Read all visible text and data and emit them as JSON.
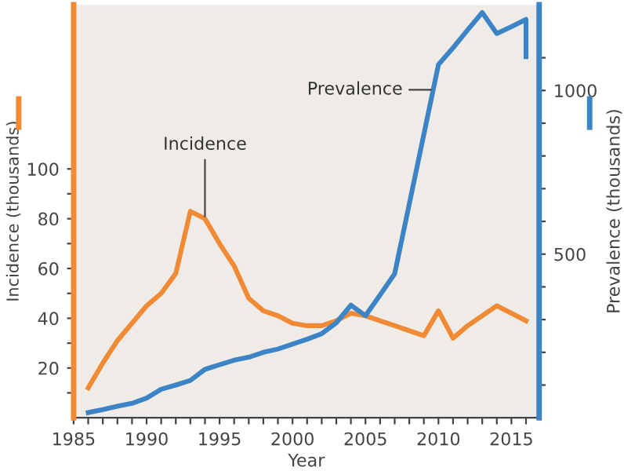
{
  "chart_data": {
    "type": "line",
    "xlabel": "Year",
    "ylabel": "Incidence (thousands)",
    "y2label": "Prevalence (thousands)",
    "xlim": [
      1985,
      2016.9
    ],
    "xticks": [
      1985,
      {
        "value": 1986,
        "label": null
      },
      {
        "value": 1987,
        "label": null
      },
      {
        "value": 1988,
        "label": null
      },
      {
        "value": 1989,
        "label": null
      },
      1990,
      {
        "value": 1991,
        "label": null
      },
      {
        "value": 1992,
        "label": null
      },
      {
        "value": 1993,
        "label": null
      },
      {
        "value": 1994,
        "label": null
      },
      1995,
      {
        "value": 1996,
        "label": null
      },
      {
        "value": 1997,
        "label": null
      },
      {
        "value": 1998,
        "label": null
      },
      {
        "value": 1999,
        "label": null
      },
      2000,
      {
        "value": 2001,
        "label": null
      },
      {
        "value": 2002,
        "label": null
      },
      {
        "value": 2003,
        "label": null
      },
      {
        "value": 2004,
        "label": null
      },
      2005,
      {
        "value": 2006,
        "label": null
      },
      {
        "value": 2007,
        "label": null
      },
      {
        "value": 2008,
        "label": null
      },
      {
        "value": 2009,
        "label": null
      },
      2010,
      {
        "value": 2011,
        "label": null
      },
      {
        "value": 2012,
        "label": null
      },
      {
        "value": 2013,
        "label": null
      },
      {
        "value": 2014,
        "label": null
      },
      2015,
      {
        "value": 2016,
        "label": null
      }
    ],
    "ylim": [
      0,
      166
    ],
    "yticks": [
      {
        "value": 10,
        "label": null
      },
      20,
      {
        "value": 30,
        "label": null
      },
      40,
      {
        "value": 50,
        "label": null
      },
      60,
      {
        "value": 70,
        "label": null
      },
      80,
      {
        "value": 90,
        "label": null
      },
      100
    ],
    "y2lim": [
      0,
      1262
    ],
    "y2ticks": [
      {
        "value": 100,
        "label": null
      },
      {
        "value": 200,
        "label": null
      },
      {
        "value": 300,
        "label": null
      },
      {
        "value": 400,
        "label": null
      },
      500,
      {
        "value": 600,
        "label": null
      },
      {
        "value": 700,
        "label": null
      },
      {
        "value": 800,
        "label": null
      },
      {
        "value": 900,
        "label": null
      },
      1000,
      {
        "value": 1100,
        "label": null
      }
    ],
    "grid": false,
    "legend": false,
    "marker": "none",
    "line_style": "solid",
    "series": [
      {
        "name": "Incidence",
        "color": "#f08a34",
        "x": [
          1986,
          1987,
          1988,
          1989,
          1990,
          1991,
          1992,
          1993,
          1994,
          1995,
          1996,
          1997,
          1998,
          1999,
          2000,
          2001,
          2002,
          2003,
          2004,
          2005,
          2006,
          2007,
          2008,
          2009,
          2010,
          2011,
          2012,
          2013,
          2014,
          2015,
          2016
        ],
        "values": [
          12,
          22,
          31,
          38,
          45,
          50,
          58,
          83,
          80,
          70,
          61,
          48,
          43,
          41,
          38,
          37,
          37,
          39,
          42,
          41,
          39,
          37,
          35,
          33,
          43,
          32,
          37,
          41,
          45,
          42,
          39
        ]
      },
      {
        "name": "Prevalence",
        "color": "#3d84c6",
        "axis": "y2",
        "x": [
          1986,
          1987,
          1988,
          1989,
          1990,
          1991,
          1992,
          1993,
          1994,
          1995,
          1996,
          1997,
          1998,
          1999,
          2000,
          2001,
          2002,
          2003,
          2004,
          2005,
          2006,
          2007,
          2010,
          2011,
          2012,
          2013,
          2014,
          2015,
          2016,
          2016
        ],
        "values": [
          16,
          25,
          35,
          44,
          60,
          87,
          100,
          114,
          148,
          162,
          176,
          185,
          200,
          210,
          225,
          240,
          257,
          290,
          344,
          312,
          375,
          440,
          1079,
          1130,
          1185,
          1238,
          1174,
          1195,
          1217,
          1103
        ]
      }
    ]
  }
}
